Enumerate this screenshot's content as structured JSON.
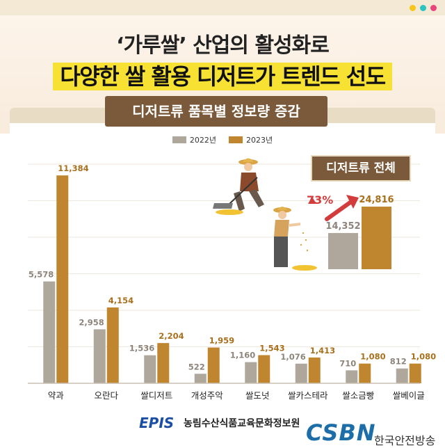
{
  "colors": {
    "series_2022": "#b0a79c",
    "series_2023": "#c0862f",
    "label_2022": "#8d857b",
    "label_2023": "#a8701d",
    "accent_red": "#d33c3c",
    "dot_yellow": "#f5c518",
    "dot_teal": "#2bc4c0",
    "dot_pink": "#e8457a"
  },
  "header": {
    "title_line1": "‘가루쌀’ 산업의 활성화로",
    "title_line2": "다양한 쌀 활용 디저트가 트렌드 선도"
  },
  "footer": {
    "epis_logo": "EPIS",
    "epis_org": "농림수산식품교육문화정보원",
    "csbn_logo": "CSBN",
    "broadcaster": "한국안전방송"
  },
  "chart_data": {
    "type": "bar",
    "title": "디저트류 품목별 정보량 증감",
    "xlabel": "",
    "ylabel": "",
    "ylim": [
      0,
      12000
    ],
    "grid": true,
    "legend_position": "top-center",
    "categories": [
      "약과",
      "오란다",
      "쌀디저트",
      "개성주악",
      "쌀도넛",
      "쌀카스테라",
      "쌀소금빵",
      "쌀베이글"
    ],
    "series": [
      {
        "name": "2022년",
        "values": [
          5578,
          2958,
          1536,
          522,
          1160,
          1076,
          710,
          812
        ],
        "labels": [
          "5,578",
          "2,958",
          "1,536",
          "522",
          "1,160",
          "1,076",
          "710",
          "812"
        ]
      },
      {
        "name": "2023년",
        "values": [
          11384,
          4154,
          2204,
          1959,
          1543,
          1413,
          1080,
          1080
        ],
        "labels": [
          "11,384",
          "4,154",
          "2,204",
          "1,959",
          "1,543",
          "1,413",
          "1,080",
          "1,080"
        ]
      }
    ],
    "total": {
      "title": "디저트류 전체",
      "values": [
        14352,
        24816
      ],
      "labels": [
        "14,352",
        "24,816"
      ],
      "change": "73%"
    }
  }
}
